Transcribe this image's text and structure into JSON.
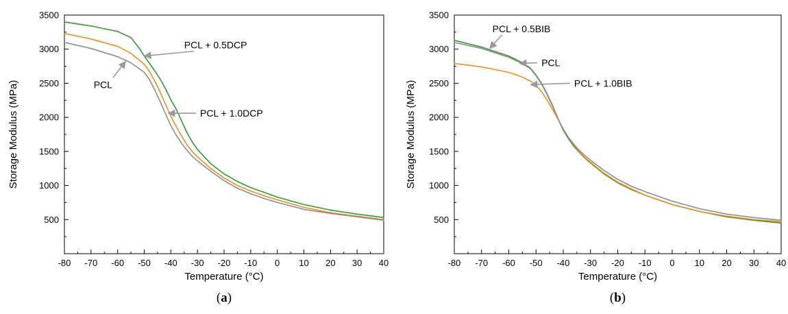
{
  "chart_data": [
    {
      "type": "line",
      "panel_label": "a",
      "xlabel": "Temperature (°C)",
      "ylabel": "Storage Modulus (MPa)",
      "xlim": [
        -80,
        40
      ],
      "ylim": [
        0,
        3500
      ],
      "x_ticks": [
        -80,
        -70,
        -60,
        -50,
        -40,
        -30,
        -20,
        -10,
        0,
        10,
        20,
        30,
        40
      ],
      "y_ticks": [
        500,
        1000,
        1500,
        2000,
        2500,
        3000,
        3500
      ],
      "grid": false,
      "legend": "none",
      "series": [
        {
          "name": "PCL + 0.5DCP",
          "color": "#2e9a2e",
          "x": [
            -80,
            -70,
            -60,
            -55,
            -52,
            -50,
            -48,
            -46,
            -44,
            -42,
            -40,
            -38,
            -36,
            -34,
            -32,
            -30,
            -25,
            -20,
            -15,
            -10,
            -5,
            0,
            10,
            20,
            30,
            40
          ],
          "y": [
            3400,
            3340,
            3260,
            3170,
            3020,
            2900,
            2790,
            2680,
            2560,
            2420,
            2260,
            2120,
            1950,
            1780,
            1640,
            1530,
            1320,
            1170,
            1060,
            970,
            900,
            830,
            720,
            640,
            580,
            530
          ]
        },
        {
          "name": "",
          "color": "#f28a1e",
          "x": [
            -80,
            -70,
            -60,
            -55,
            -50,
            -48,
            -46,
            -44,
            -42,
            -40,
            -38,
            -36,
            -34,
            -32,
            -30,
            -25,
            -20,
            -15,
            -10,
            -5,
            0,
            10,
            20,
            30,
            40
          ],
          "y": [
            3230,
            3150,
            3040,
            2940,
            2780,
            2670,
            2530,
            2370,
            2190,
            2020,
            1870,
            1730,
            1600,
            1500,
            1420,
            1250,
            1110,
            1000,
            920,
            850,
            790,
            680,
            600,
            550,
            500
          ]
        },
        {
          "name": "PCL",
          "color": "#8c8c8c",
          "x": [
            -80,
            -70,
            -60,
            -55,
            -50,
            -48,
            -46,
            -44,
            -42,
            -40,
            -38,
            -36,
            -34,
            -32,
            -30,
            -25,
            -20,
            -15,
            -10,
            -5,
            0,
            10,
            20,
            30,
            40
          ],
          "y": [
            3100,
            3010,
            2890,
            2800,
            2660,
            2550,
            2400,
            2230,
            2050,
            1880,
            1740,
            1620,
            1520,
            1430,
            1360,
            1210,
            1070,
            960,
            880,
            810,
            750,
            650,
            590,
            540,
            490
          ]
        }
      ],
      "annotations": [
        {
          "text": "PCL + 0.5DCP",
          "x": -35,
          "y": 3060,
          "arrow_to_x": -50,
          "arrow_to_y": 2900
        },
        {
          "text": "PCL + 1.0DCP",
          "x": -29,
          "y": 2060,
          "arrow_to_x": -41,
          "arrow_to_y": 2060
        },
        {
          "text": "PCL",
          "x": -69,
          "y": 2480,
          "arrow_to_x": -57,
          "arrow_to_y": 2820
        }
      ]
    },
    {
      "type": "line",
      "panel_label": "b",
      "xlabel": "Temperature (°C)",
      "ylabel": "Storage Modulus (MPa)",
      "xlim": [
        -80,
        40
      ],
      "ylim": [
        0,
        3500
      ],
      "x_ticks": [
        -80,
        -70,
        -60,
        -50,
        -40,
        -30,
        -20,
        -10,
        0,
        10,
        20,
        30,
        40
      ],
      "y_ticks": [
        500,
        1000,
        1500,
        2000,
        2500,
        3000,
        3500
      ],
      "grid": false,
      "legend": "none",
      "series": [
        {
          "name": "PCL + 0.5BIB",
          "color": "#2e9a2e",
          "x": [
            -80,
            -70,
            -60,
            -55,
            -52,
            -50,
            -48,
            -46,
            -44,
            -42,
            -40,
            -38,
            -36,
            -34,
            -32,
            -30,
            -25,
            -20,
            -15,
            -10,
            -5,
            0,
            10,
            20,
            30,
            40
          ],
          "y": [
            3130,
            3030,
            2900,
            2800,
            2720,
            2620,
            2500,
            2350,
            2180,
            1990,
            1810,
            1680,
            1570,
            1480,
            1400,
            1330,
            1170,
            1040,
            940,
            860,
            790,
            720,
            620,
            540,
            490,
            450
          ]
        },
        {
          "name": "PCL + 1.0BIB",
          "color": "#f28a1e",
          "x": [
            -80,
            -70,
            -60,
            -55,
            -52,
            -50,
            -48,
            -46,
            -44,
            -42,
            -40,
            -38,
            -36,
            -34,
            -32,
            -30,
            -25,
            -20,
            -15,
            -10,
            -5,
            0,
            10,
            20,
            30,
            40
          ],
          "y": [
            2790,
            2740,
            2660,
            2590,
            2530,
            2470,
            2380,
            2260,
            2120,
            1980,
            1830,
            1700,
            1590,
            1490,
            1410,
            1340,
            1180,
            1050,
            950,
            860,
            790,
            720,
            620,
            550,
            500,
            470
          ]
        },
        {
          "name": "PCL",
          "color": "#8c8c8c",
          "x": [
            -80,
            -70,
            -60,
            -55,
            -52,
            -50,
            -48,
            -46,
            -44,
            -42,
            -40,
            -38,
            -36,
            -34,
            -32,
            -30,
            -25,
            -20,
            -15,
            -10,
            -5,
            0,
            10,
            20,
            30,
            40
          ],
          "y": [
            3100,
            3010,
            2880,
            2790,
            2710,
            2610,
            2490,
            2340,
            2170,
            1990,
            1820,
            1700,
            1600,
            1510,
            1440,
            1370,
            1220,
            1090,
            990,
            910,
            840,
            770,
            660,
            580,
            530,
            490
          ]
        }
      ],
      "annotations": [
        {
          "text": "PCL + 0.5BIB",
          "x": -66,
          "y": 3300,
          "arrow_to_x": -67,
          "arrow_to_y": 3010
        },
        {
          "text": "PCL",
          "x": -48,
          "y": 2800,
          "arrow_to_x": -56,
          "arrow_to_y": 2790
        },
        {
          "text": "PCL + 1.0BIB",
          "x": -36,
          "y": 2500,
          "arrow_to_x": -52,
          "arrow_to_y": 2480
        }
      ]
    }
  ]
}
